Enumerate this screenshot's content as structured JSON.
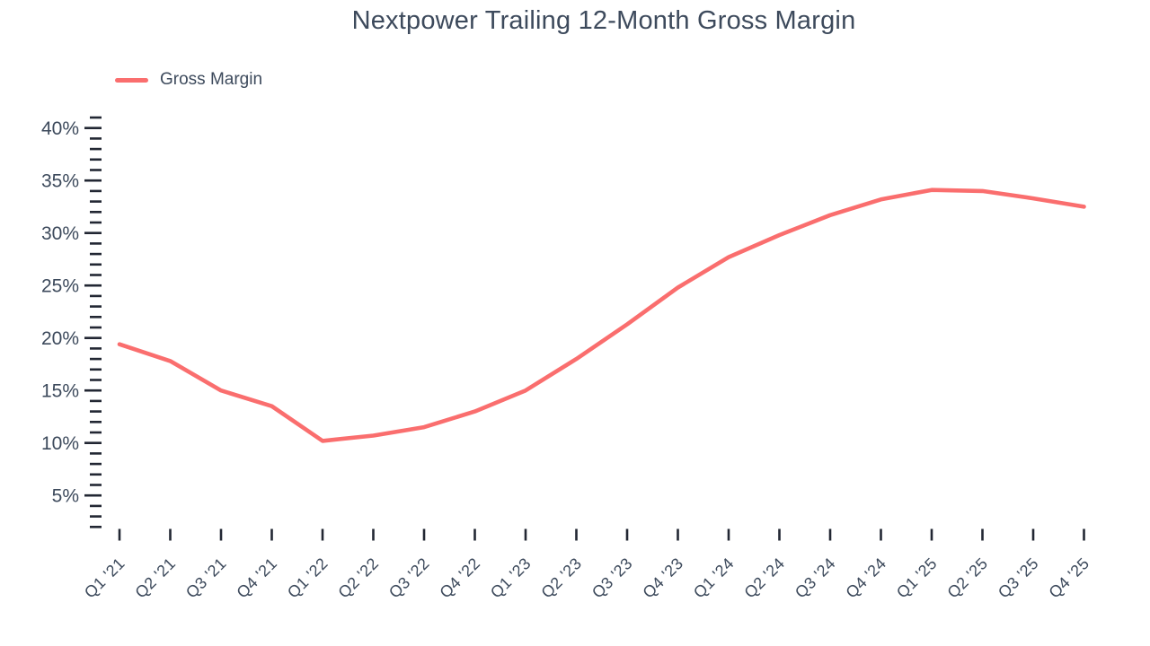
{
  "title": "Nextpower Trailing 12-Month Gross Margin",
  "colors": {
    "line": "#fa6e6e",
    "text": "#3d4a5c",
    "tick": "#222733",
    "background": "#ffffff"
  },
  "legend": {
    "position": "top-left",
    "entries": [
      "Gross Margin"
    ]
  },
  "chart_data": {
    "type": "line",
    "title": "Nextpower Trailing 12-Month Gross Margin",
    "categories": [
      "Q1 '21",
      "Q2 '21",
      "Q3 '21",
      "Q4 '21",
      "Q1 '22",
      "Q2 '22",
      "Q3 '22",
      "Q4 '22",
      "Q1 '23",
      "Q2 '23",
      "Q3 '23",
      "Q4 '23",
      "Q1 '24",
      "Q2 '24",
      "Q3 '24",
      "Q4 '24",
      "Q1 '25",
      "Q2 '25",
      "Q3 '25",
      "Q4 '25"
    ],
    "series": [
      {
        "name": "Gross Margin",
        "color": "#fa6e6e",
        "values": [
          19.4,
          17.8,
          15.0,
          13.5,
          10.2,
          10.7,
          11.5,
          13.0,
          15.0,
          18.0,
          21.3,
          24.8,
          27.7,
          29.8,
          31.7,
          33.2,
          34.1,
          34.0,
          33.3,
          32.5
        ]
      }
    ],
    "xlabel": "",
    "ylabel": "",
    "y_axis": {
      "unit": "%",
      "labeled_ticks": [
        5,
        10,
        15,
        20,
        25,
        30,
        35,
        40
      ],
      "minor_tick_step": 1,
      "minor_tick_range": [
        2,
        41
      ],
      "ylim": [
        2,
        41
      ]
    },
    "grid": false,
    "legend_position": "top-left"
  }
}
